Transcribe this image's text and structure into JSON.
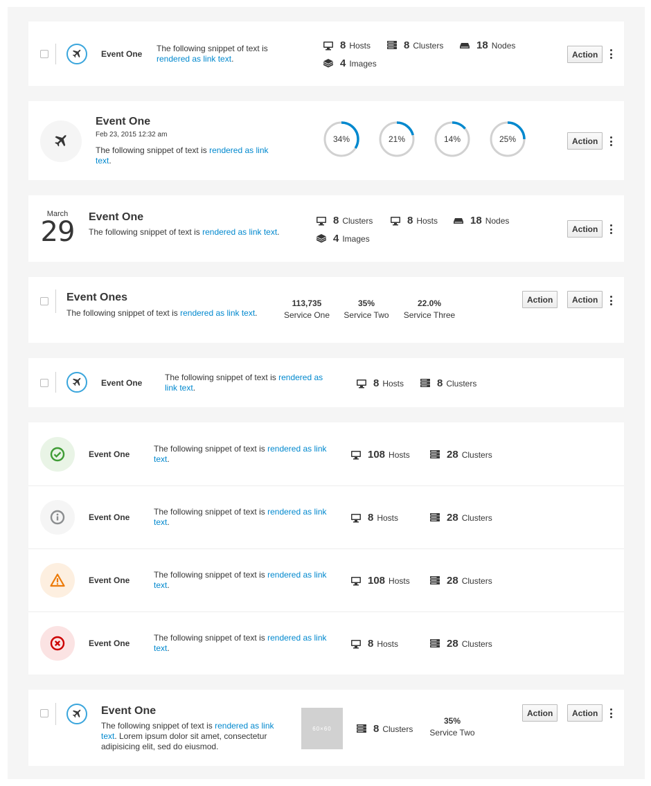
{
  "snippet_plain": "The following snippet of text is",
  "snippet_link": "rendered as link text",
  "action_label": "Action",
  "colors": {
    "link": "#0088ce",
    "accent": "#39a5dc",
    "success": "#3f9c35",
    "info": "#8b8d8f",
    "warning": "#ec7a08",
    "danger": "#cc0000"
  },
  "items": {
    "one": {
      "title": "Event One",
      "stats": [
        {
          "icon": "monitor-icon",
          "value": "8",
          "label": "Hosts"
        },
        {
          "icon": "server-icon",
          "value": "8",
          "label": "Clusters"
        },
        {
          "icon": "node-icon",
          "value": "18",
          "label": "Nodes"
        },
        {
          "icon": "layers-icon",
          "value": "4",
          "label": "Images"
        }
      ]
    },
    "two": {
      "title": "Event One",
      "date": "Feb 23, 2015 12:32 am",
      "donuts": [
        {
          "percent": 34,
          "label": "34%"
        },
        {
          "percent": 21,
          "label": "21%"
        },
        {
          "percent": 14,
          "label": "14%"
        },
        {
          "percent": 25,
          "label": "25%"
        }
      ]
    },
    "three": {
      "month": "March",
      "day": "29",
      "title": "Event One",
      "stats": [
        {
          "icon": "monitor-icon",
          "value": "8",
          "label": "Clusters"
        },
        {
          "icon": "monitor-icon",
          "value": "8",
          "label": "Hosts"
        },
        {
          "icon": "node-icon",
          "value": "18",
          "label": "Nodes"
        },
        {
          "icon": "layers-icon",
          "value": "4",
          "label": "Images"
        }
      ]
    },
    "four": {
      "title": "Event Ones",
      "services": [
        {
          "value": "113,735",
          "label": "Service One"
        },
        {
          "value": "35%",
          "label": "Service Two"
        },
        {
          "value": "22.0%",
          "label": "Service Three"
        }
      ]
    },
    "five": {
      "title": "Event One",
      "stats": [
        {
          "icon": "monitor-icon",
          "value": "8",
          "label": "Hosts"
        },
        {
          "icon": "server-icon",
          "value": "8",
          "label": "Clusters"
        }
      ]
    },
    "status": [
      {
        "icon": "check-circle-icon",
        "title": "Event One",
        "hosts": "108",
        "hosts_label": "Hosts",
        "clusters": "28",
        "clusters_label": "Clusters"
      },
      {
        "icon": "info-circle-icon",
        "title": "Event One",
        "hosts": "8",
        "hosts_label": "Hosts",
        "clusters": "28",
        "clusters_label": "Clusters"
      },
      {
        "icon": "warning-triangle-icon",
        "title": "Event One",
        "hosts": "108",
        "hosts_label": "Hosts",
        "clusters": "28",
        "clusters_label": "Clusters"
      },
      {
        "icon": "error-circle-icon",
        "title": "Event One",
        "hosts": "8",
        "hosts_label": "Hosts",
        "clusters": "28",
        "clusters_label": "Clusters"
      }
    ],
    "last": {
      "title": "Event One",
      "extra_text": ". Lorem ipsum dolor sit amet, consectetur adipisicing elit, sed do eiusmod.",
      "thumb": "60×60",
      "clusters_value": "8",
      "clusters_label": "Clusters",
      "service_value": "35%",
      "service_label": "Service Two"
    }
  }
}
